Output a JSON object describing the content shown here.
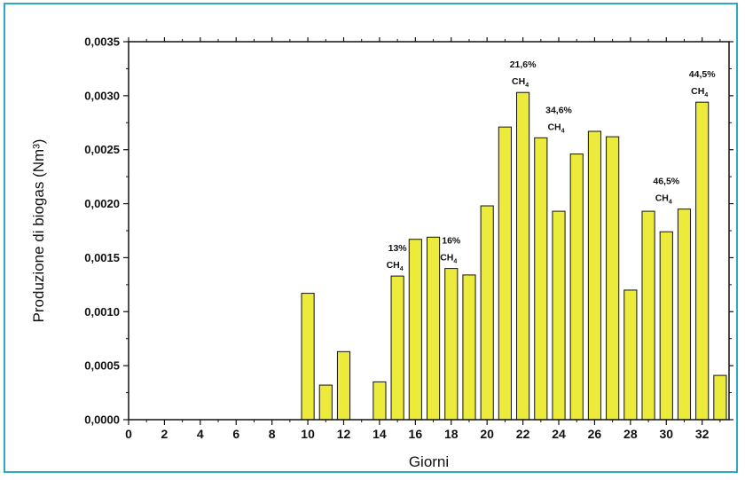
{
  "chart_data": {
    "type": "bar",
    "title": "",
    "xlabel": "Giorni",
    "ylabel": "Produzione di biogas (Nm³)",
    "xlim": [
      0,
      33.5
    ],
    "ylim": [
      0,
      0.0035
    ],
    "x_ticks": [
      "0",
      "2",
      "4",
      "6",
      "8",
      "10",
      "12",
      "14",
      "16",
      "18",
      "20",
      "22",
      "24",
      "26",
      "28",
      "30",
      "32"
    ],
    "y_ticks": [
      "0,0000",
      "0,0005",
      "0,0010",
      "0,0015",
      "0,0020",
      "0,0025",
      "0,0030",
      "0,0035"
    ],
    "bar_color": "#ecea3a",
    "x": [
      10,
      11,
      12,
      14,
      15,
      16,
      17,
      18,
      19,
      20,
      21,
      22,
      23,
      24,
      25,
      26,
      27,
      28,
      29,
      30,
      31,
      32,
      33
    ],
    "values": [
      0.00117,
      0.00032,
      0.00063,
      0.00035,
      0.00133,
      0.00167,
      0.00169,
      0.0014,
      0.00134,
      0.00198,
      0.00271,
      0.00303,
      0.00261,
      0.00193,
      0.00246,
      0.00267,
      0.00262,
      0.0012,
      0.00193,
      0.00174,
      0.00195,
      0.00294,
      0.00041
    ],
    "annotations": [
      {
        "x": 15,
        "y": 0.00133,
        "text": "13%",
        "sub": "CH4"
      },
      {
        "x": 18,
        "y": 0.0014,
        "text": "16%",
        "sub": "CH4"
      },
      {
        "x": 22,
        "y": 0.00303,
        "text": "21,6%",
        "sub": "CH4"
      },
      {
        "x": 24,
        "y": 0.00261,
        "text": "34,6%",
        "sub": "CH4"
      },
      {
        "x": 30,
        "y": 0.00195,
        "text": "46,5%",
        "sub": "CH4"
      },
      {
        "x": 32,
        "y": 0.00294,
        "text": "44,5%",
        "sub": "CH4"
      }
    ]
  }
}
